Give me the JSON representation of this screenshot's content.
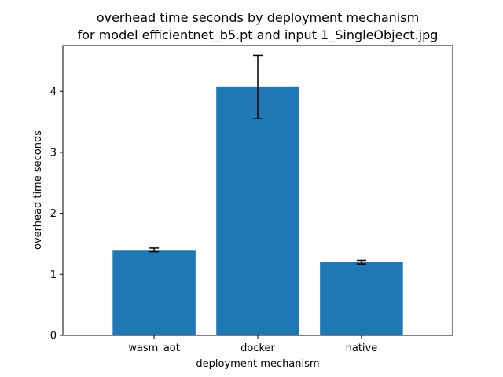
{
  "chart_data": {
    "type": "bar",
    "title_lines": [
      "overhead time seconds by deployment mechanism",
      "for model efficientnet_b5.pt and input 1_SingleObject.jpg"
    ],
    "xlabel": "deployment mechanism",
    "ylabel": "overhead time seconds",
    "categories": [
      "wasm_aot",
      "docker",
      "native"
    ],
    "values": [
      1.4,
      4.07,
      1.2
    ],
    "error_low": [
      1.37,
      3.55,
      1.17
    ],
    "error_high": [
      1.43,
      4.59,
      1.23
    ],
    "ylim": [
      0,
      4.75
    ],
    "yticks": [
      0,
      1,
      2,
      3,
      4
    ],
    "ytick_labels": [
      "0",
      "1",
      "2",
      "3",
      "4"
    ],
    "grid": false,
    "legend": false,
    "bar_color": "#1f77b4",
    "error_color": "#000000"
  }
}
